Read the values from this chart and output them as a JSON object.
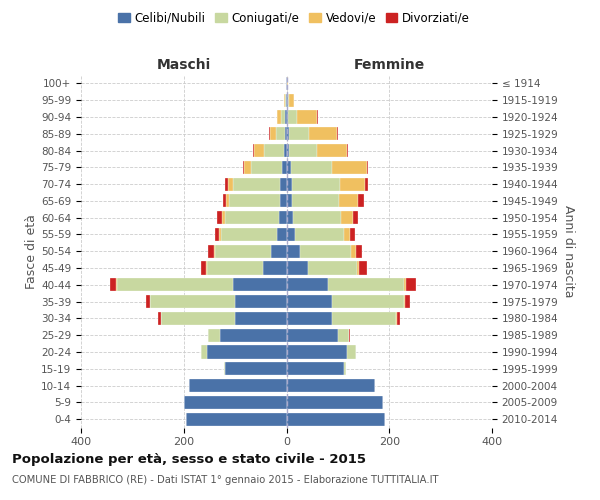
{
  "age_groups": [
    "0-4",
    "5-9",
    "10-14",
    "15-19",
    "20-24",
    "25-29",
    "30-34",
    "35-39",
    "40-44",
    "45-49",
    "50-54",
    "55-59",
    "60-64",
    "65-69",
    "70-74",
    "75-79",
    "80-84",
    "85-89",
    "90-94",
    "95-99",
    "100+"
  ],
  "birth_years": [
    "2010-2014",
    "2005-2009",
    "2000-2004",
    "1995-1999",
    "1990-1994",
    "1985-1989",
    "1980-1984",
    "1975-1979",
    "1970-1974",
    "1965-1969",
    "1960-1964",
    "1955-1959",
    "1950-1954",
    "1945-1949",
    "1940-1944",
    "1935-1939",
    "1930-1934",
    "1925-1929",
    "1920-1924",
    "1915-1919",
    "≤ 1914"
  ],
  "colors": {
    "celibi": "#4a72a8",
    "coniugati": "#c8d8a0",
    "vedovi": "#f0c060",
    "divorziati": "#cc2222"
  },
  "legend_labels": [
    "Celibi/Nubili",
    "Coniugati/e",
    "Vedovi/e",
    "Divorziati/e"
  ],
  "maschi": {
    "celibi": [
      195,
      200,
      190,
      120,
      155,
      130,
      100,
      100,
      105,
      45,
      30,
      18,
      15,
      12,
      12,
      8,
      5,
      3,
      2,
      1,
      1
    ],
    "coniugati": [
      0,
      0,
      0,
      2,
      12,
      22,
      145,
      165,
      225,
      110,
      110,
      110,
      105,
      100,
      92,
      62,
      38,
      18,
      8,
      1,
      0
    ],
    "vedovi": [
      0,
      0,
      0,
      0,
      0,
      0,
      0,
      0,
      2,
      2,
      2,
      3,
      5,
      5,
      10,
      12,
      20,
      12,
      8,
      2,
      0
    ],
    "divorziati": [
      0,
      0,
      0,
      0,
      0,
      1,
      5,
      8,
      12,
      10,
      10,
      8,
      10,
      6,
      6,
      3,
      2,
      2,
      0,
      0,
      0
    ]
  },
  "femmine": {
    "nubili": [
      192,
      188,
      172,
      112,
      118,
      100,
      88,
      88,
      80,
      42,
      26,
      16,
      12,
      10,
      10,
      8,
      5,
      5,
      3,
      2,
      1
    ],
    "coniugate": [
      0,
      0,
      0,
      4,
      18,
      22,
      125,
      140,
      148,
      95,
      100,
      95,
      95,
      92,
      95,
      80,
      55,
      38,
      18,
      3,
      0
    ],
    "vedove": [
      0,
      0,
      0,
      0,
      0,
      0,
      2,
      2,
      5,
      5,
      10,
      12,
      22,
      38,
      48,
      68,
      58,
      55,
      38,
      10,
      2
    ],
    "divorziate": [
      0,
      0,
      0,
      0,
      0,
      1,
      5,
      10,
      20,
      15,
      10,
      10,
      10,
      10,
      5,
      3,
      2,
      2,
      2,
      0,
      0
    ]
  },
  "xlim": 400,
  "title": "Popolazione per età, sesso e stato civile - 2015",
  "subtitle": "COMUNE DI FABBRICO (RE) - Dati ISTAT 1° gennaio 2015 - Elaborazione TUTTITALIA.IT",
  "ylabel_left": "Fasce di età",
  "ylabel_right": "Anni di nascita",
  "header_left": "Maschi",
  "header_right": "Femmine",
  "bg_color": "#ffffff",
  "grid_color": "#cccccc"
}
